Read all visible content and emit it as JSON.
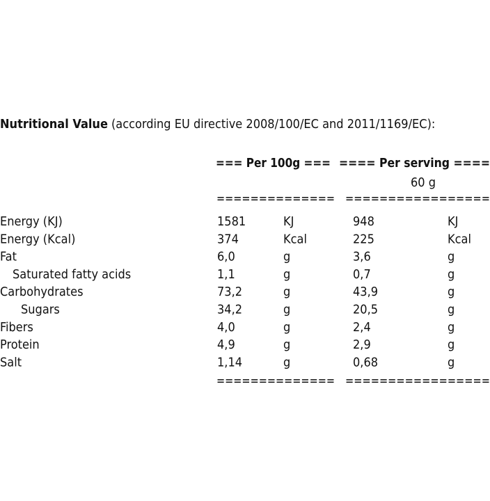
{
  "title": {
    "bold": "Nutritional Value",
    "rest": "(according EU directive 2008/100/EC and 2011/1169/EC):"
  },
  "columns": {
    "per_100g": "=== Per 100g ===",
    "per_serving": "==== Per serving ====",
    "serving_size": "60 g"
  },
  "separators": {
    "top_100g": "==============",
    "top_serving": "=================",
    "bottom_100g": "==============",
    "bottom_serving": "================="
  },
  "rows": [
    [
      "Energy (KJ)",
      "1581",
      "KJ",
      "948",
      "KJ"
    ],
    [
      "Energy (Kcal)",
      "374",
      "Kcal",
      "225",
      "Kcal"
    ],
    [
      "Fat",
      "6,0",
      "g",
      "3,6",
      "g"
    ],
    [
      "Saturated fatty acids",
      "1,1",
      "g",
      "0,7",
      "g"
    ],
    [
      "Carbohydrates",
      "73,2",
      "g",
      "43,9",
      "g"
    ],
    [
      "Sugars",
      "34,2",
      "g",
      "20,5",
      "g"
    ],
    [
      "Fibers",
      "4,0",
      "g",
      "2,4",
      "g"
    ],
    [
      "Protein",
      "4,9",
      "g",
      "2,9",
      "g"
    ],
    [
      "Salt",
      "1,14",
      "g",
      "0,68",
      "g"
    ]
  ]
}
